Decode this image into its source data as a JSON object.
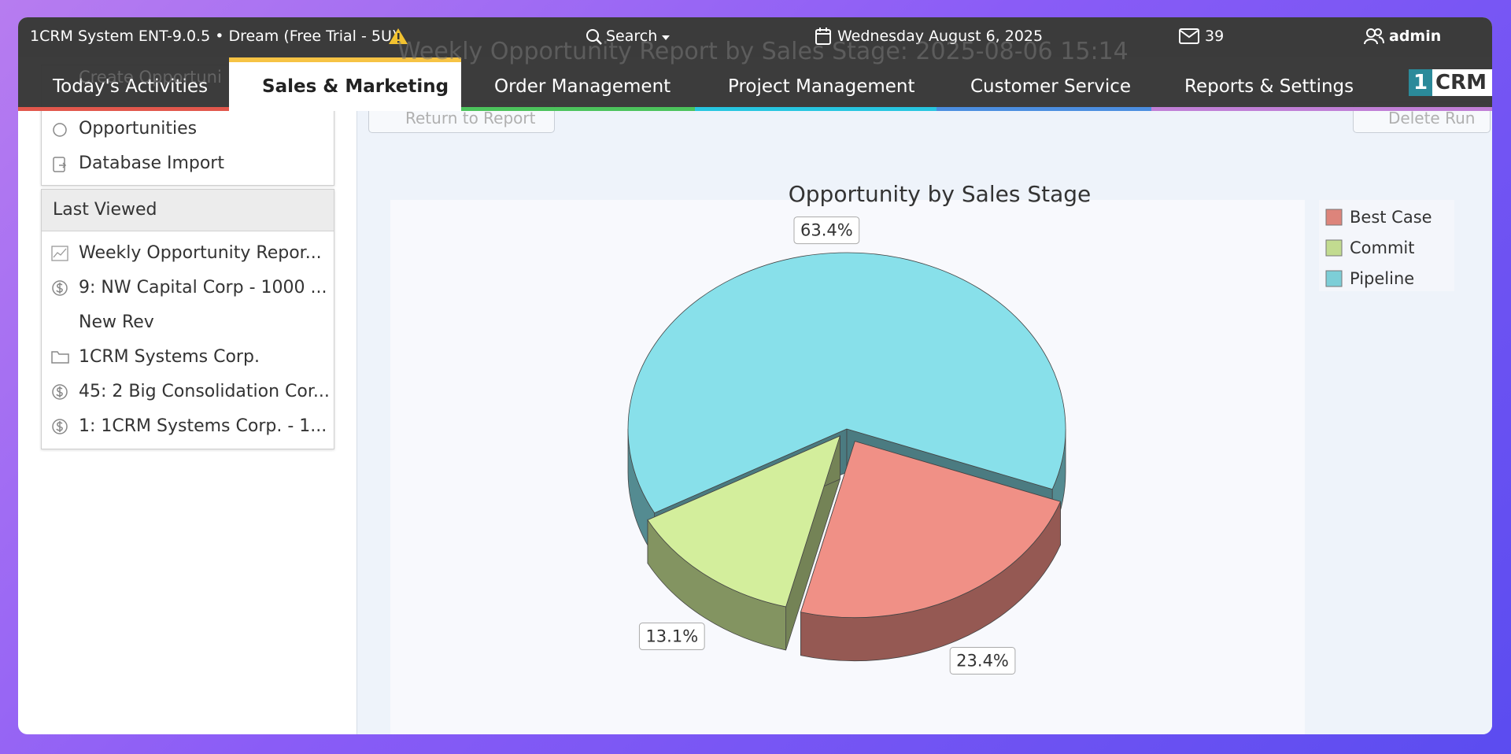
{
  "top_bar": {
    "app_title": "1CRM System ENT-9.0.5 • Dream (Free Trial - 5U)",
    "search": "Search",
    "date": "Wednesday August 6, 2025",
    "messages": 39,
    "user": "admin"
  },
  "nav": {
    "tabs": [
      "Today's Activities",
      "Sales & Marketing",
      "Order Management",
      "Project Management",
      "Customer Service",
      "Reports & Settings"
    ],
    "logo_number": "1",
    "logo_text": "CRM"
  },
  "background": {
    "page_title": "Weekly Opportunity Report by Sales Stage: 2025-08-06 15:14",
    "return_button": "Return to Report",
    "delete_button": "Delete Run",
    "create_link": "Create Opportuni"
  },
  "sidebar": {
    "items": [
      "Opportunities",
      "Database Import"
    ],
    "last_viewed": {
      "title": "Last Viewed",
      "items": [
        "Weekly Opportunity Repor...",
        "9: NW Capital Corp - 1000 ...",
        "New Rev",
        "1CRM Systems Corp.",
        "45: 2 Big Consolidation Cor...",
        "1: 1CRM Systems Corp. - 1..."
      ]
    }
  },
  "chart_data": {
    "type": "pie",
    "title": "Opportunity by Sales Stage",
    "categories": [
      "Best Case",
      "Commit",
      "Pipeline"
    ],
    "values": [
      23.4,
      13.1,
      63.4
    ],
    "value_labels": [
      "23.4%",
      "13.1%",
      "63.4%"
    ],
    "colors": [
      "#f09086",
      "#d3ee9c",
      "#88e0ea"
    ],
    "legend": "top-right"
  }
}
